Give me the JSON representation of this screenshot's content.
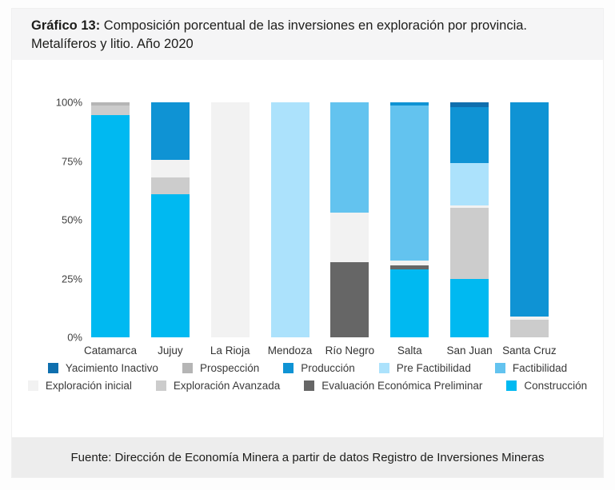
{
  "header": {
    "title_prefix": "Gráfico 13:",
    "title_rest": "Composición porcentual de las inversiones en exploración por provincia.",
    "title_line2": "Metalíferos y litio. Año 2020"
  },
  "footer": {
    "source": "Fuente: Dirección de Economía Minera a partir de datos Registro de Inversiones Mineras"
  },
  "colors": {
    "title_band_bg": "#f5f5f6",
    "footer_band_bg": "#ededed",
    "card_bg": "#ffffff"
  },
  "chart_data": {
    "type": "bar",
    "stacked": true,
    "stacked_100_percent": true,
    "grid": false,
    "legend_position": "bottom",
    "ylim": [
      0,
      100
    ],
    "y_ticks": [
      "0%",
      "25%",
      "50%",
      "75%",
      "100%"
    ],
    "categories": [
      "Catamarca",
      "Jujuy",
      "La Rioja",
      "Mendoza",
      "Río Negro",
      "Salta",
      "San Juan",
      "Santa Cruz"
    ],
    "series": [
      {
        "key": "yacimiento_inactivo",
        "name": "Yacimiento Inactivo",
        "color": "#0f6fae",
        "values": [
          0,
          0,
          0,
          0,
          0,
          0,
          2,
          0
        ]
      },
      {
        "key": "prospeccion",
        "name": "Prospección",
        "color": "#b5b5b5",
        "values": [
          1.5,
          0,
          0,
          0,
          0,
          0,
          0,
          0
        ]
      },
      {
        "key": "produccion",
        "name": "Producción",
        "color": "#0f93d4",
        "values": [
          0,
          24.5,
          0,
          0,
          0,
          1.5,
          24,
          91
        ]
      },
      {
        "key": "pre_factibilidad",
        "name": "Pre Factibilidad",
        "color": "#ace2fc",
        "values": [
          0,
          0,
          0,
          100,
          0,
          0,
          18,
          0
        ]
      },
      {
        "key": "factibilidad",
        "name": "Factibilidad",
        "color": "#63c3ef",
        "values": [
          0,
          0,
          0,
          0,
          47,
          66,
          0,
          0
        ]
      },
      {
        "key": "exploracion_inicial",
        "name": "Exploración inicial",
        "color": "#f2f2f2",
        "values": [
          0,
          7.5,
          100,
          0,
          21,
          2,
          1,
          1.5
        ]
      },
      {
        "key": "exploracion_avanzada",
        "name": "Exploración Avanzada",
        "color": "#cccccc",
        "values": [
          4,
          7,
          0,
          0,
          0,
          0,
          30,
          7.5
        ]
      },
      {
        "key": "evaluacion_economica_preliminar",
        "name": "Evaluación Económica Preliminar",
        "color": "#666666",
        "values": [
          0,
          0,
          0,
          0,
          32,
          1.5,
          0,
          0
        ]
      },
      {
        "key": "construccion",
        "name": "Construcción",
        "color": "#00b9f1",
        "values": [
          94.5,
          61,
          0,
          0,
          0,
          29,
          25,
          0
        ]
      }
    ],
    "stack_order_bottom_to_top": [
      "construccion",
      "evaluacion_economica_preliminar",
      "exploracion_avanzada",
      "exploracion_inicial",
      "factibilidad",
      "pre_factibilidad",
      "produccion",
      "prospeccion",
      "yacimiento_inactivo"
    ],
    "legend_rows": [
      [
        "yacimiento_inactivo",
        "prospeccion",
        "produccion",
        "pre_factibilidad",
        "factibilidad"
      ],
      [
        "exploracion_inicial",
        "exploracion_avanzada",
        "evaluacion_economica_preliminar",
        "construccion"
      ]
    ]
  }
}
